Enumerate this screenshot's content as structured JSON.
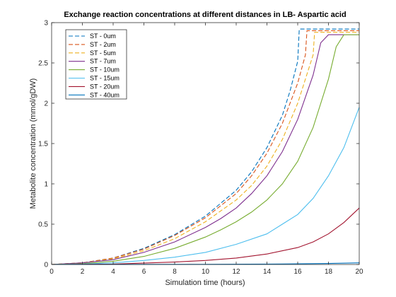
{
  "chart_data": {
    "type": "line",
    "title": "Exchange reaction concentrations at different distances in LB- Aspartic acid",
    "xlabel": "Simulation time (hours)",
    "ylabel": "Metabolite concentration (mmol/gDW)",
    "xlim": [
      0,
      20
    ],
    "ylim": [
      0,
      3
    ],
    "xticks": [
      "0",
      "2",
      "4",
      "6",
      "8",
      "10",
      "12",
      "14",
      "16",
      "18",
      "20"
    ],
    "yticks": [
      "0",
      "0.5",
      "1",
      "1.5",
      "2",
      "2.5",
      "3"
    ],
    "grid": false,
    "legend_position": "top-left",
    "series": [
      {
        "name": "ST - 0um",
        "color": "#0072BD",
        "dash": "dashed",
        "x": [
          0,
          2,
          4,
          6,
          8,
          10,
          12,
          13,
          14,
          15,
          15.5,
          16,
          16.1,
          20
        ],
        "y": [
          0,
          0.02,
          0.08,
          0.2,
          0.37,
          0.6,
          0.92,
          1.15,
          1.45,
          1.85,
          2.15,
          2.52,
          2.92,
          2.92
        ]
      },
      {
        "name": "ST - 2um",
        "color": "#D95319",
        "dash": "dashed",
        "x": [
          0,
          2,
          4,
          6,
          8,
          10,
          12,
          13,
          14,
          15,
          16,
          16.5,
          16.6,
          20
        ],
        "y": [
          0,
          0.02,
          0.08,
          0.19,
          0.36,
          0.58,
          0.88,
          1.1,
          1.38,
          1.75,
          2.25,
          2.6,
          2.9,
          2.9
        ]
      },
      {
        "name": "ST - 5um",
        "color": "#EDB120",
        "dash": "dashed",
        "x": [
          0,
          2,
          4,
          6,
          8,
          10,
          12,
          13,
          14,
          15,
          16,
          17,
          17.1,
          20
        ],
        "y": [
          0,
          0.02,
          0.07,
          0.17,
          0.32,
          0.53,
          0.8,
          0.98,
          1.22,
          1.55,
          2.0,
          2.6,
          2.88,
          2.88
        ]
      },
      {
        "name": "ST - 7um",
        "color": "#7E2F8E",
        "dash": "solid",
        "x": [
          0,
          2,
          4,
          6,
          8,
          10,
          11,
          12,
          13,
          14,
          15,
          16,
          17,
          17.5,
          18,
          20
        ],
        "y": [
          0,
          0.02,
          0.06,
          0.15,
          0.28,
          0.46,
          0.57,
          0.7,
          0.88,
          1.1,
          1.4,
          1.8,
          2.35,
          2.75,
          2.85,
          2.85
        ]
      },
      {
        "name": "ST - 10um",
        "color": "#77AC30",
        "dash": "solid",
        "x": [
          0,
          2,
          4,
          6,
          8,
          10,
          11,
          12,
          13,
          14,
          15,
          16,
          17,
          18,
          18.5,
          19,
          20
        ],
        "y": [
          0,
          0.01,
          0.04,
          0.1,
          0.2,
          0.34,
          0.43,
          0.53,
          0.65,
          0.8,
          1.0,
          1.28,
          1.7,
          2.3,
          2.7,
          2.85,
          2.85
        ]
      },
      {
        "name": "ST - 15um",
        "color": "#4DBEEE",
        "dash": "solid",
        "x": [
          0,
          2,
          4,
          6,
          8,
          10,
          12,
          14,
          15,
          16,
          17,
          18,
          19,
          20
        ],
        "y": [
          0,
          0.005,
          0.02,
          0.05,
          0.09,
          0.15,
          0.25,
          0.38,
          0.5,
          0.62,
          0.82,
          1.1,
          1.45,
          1.95
        ]
      },
      {
        "name": "ST - 20um",
        "color": "#A2142F",
        "dash": "solid",
        "x": [
          0,
          4,
          8,
          10,
          12,
          14,
          16,
          17,
          18,
          19,
          20
        ],
        "y": [
          0,
          0.005,
          0.03,
          0.05,
          0.08,
          0.13,
          0.21,
          0.28,
          0.38,
          0.52,
          0.7
        ]
      },
      {
        "name": "ST - 40um",
        "color": "#0072BD",
        "dash": "solid",
        "x": [
          0,
          10,
          15,
          18,
          20
        ],
        "y": [
          0,
          0.002,
          0.006,
          0.012,
          0.02
        ]
      }
    ]
  }
}
